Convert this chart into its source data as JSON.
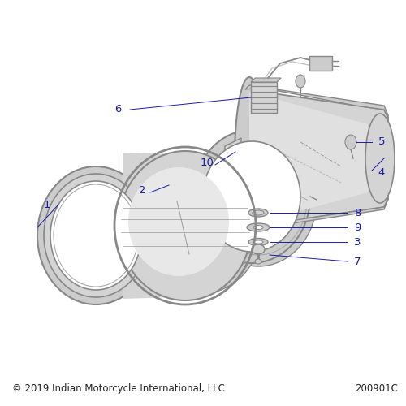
{
  "background_color": "#ffffff",
  "label_color": "#1a1aaa",
  "gray": "#aaaaaa",
  "darkgray": "#888888",
  "lightgray": "#cccccc",
  "fillgray": "#d4d4d4",
  "copyright_text": "© 2019 Indian Motorcycle International, LLC",
  "part_number": "200901C",
  "footer_fontsize": 8.5,
  "label_fontsize": 9.5
}
